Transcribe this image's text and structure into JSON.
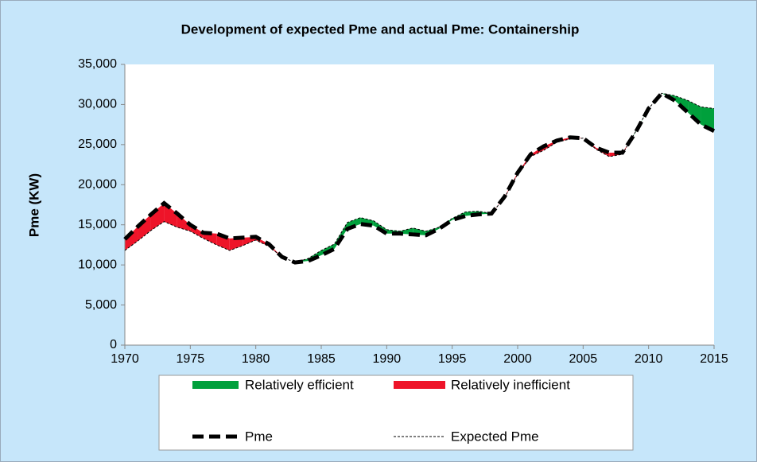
{
  "chart_data": {
    "type": "line",
    "title": "Development of expected Pme and actual Pme: Containership",
    "y_label": "Pme (KW)",
    "x": [
      1970,
      1971,
      1972,
      1973,
      1974,
      1975,
      1976,
      1977,
      1978,
      1979,
      1980,
      1981,
      1982,
      1983,
      1984,
      1985,
      1986,
      1987,
      1988,
      1989,
      1990,
      1991,
      1992,
      1993,
      1994,
      1995,
      1996,
      1997,
      1998,
      1999,
      2000,
      2001,
      2002,
      2003,
      2004,
      2005,
      2006,
      2007,
      2008,
      2009,
      2010,
      2011,
      2012,
      2013,
      2014,
      2015
    ],
    "series": [
      {
        "name": "Pme",
        "color": "#000000",
        "values": [
          13200,
          14800,
          16300,
          17700,
          16400,
          15000,
          14000,
          13900,
          13300,
          13400,
          13500,
          12600,
          11000,
          10300,
          10500,
          11200,
          12000,
          14500,
          15100,
          14900,
          13900,
          13900,
          13800,
          13700,
          14500,
          15600,
          16100,
          16300,
          16400,
          18500,
          21500,
          23800,
          24800,
          25500,
          25900,
          25800,
          24600,
          24000,
          24000,
          26500,
          29500,
          31400,
          30500,
          29000,
          27500,
          26700
        ]
      },
      {
        "name": "Expected Pme",
        "color": "#000000",
        "values": [
          11800,
          13000,
          14300,
          15400,
          14700,
          14200,
          13300,
          12500,
          11800,
          12400,
          13100,
          12300,
          11000,
          10300,
          10800,
          11800,
          12600,
          15300,
          15900,
          15500,
          14400,
          14200,
          14600,
          14200,
          14700,
          15800,
          16600,
          16700,
          16400,
          18400,
          21300,
          23500,
          24300,
          25300,
          25700,
          25800,
          24400,
          23500,
          23800,
          26600,
          29500,
          31400,
          31100,
          30500,
          29700,
          29500
        ]
      }
    ],
    "bands": [
      {
        "name": "Relatively efficient",
        "color": "#00a03c"
      },
      {
        "name": "Relatively inefficient",
        "color": "#ee1429"
      }
    ],
    "xlim": [
      1970,
      2015
    ],
    "xticks": [
      1970,
      1975,
      1980,
      1985,
      1990,
      1995,
      2000,
      2005,
      2010,
      2015
    ],
    "ylim": [
      0,
      35000
    ],
    "yticks": [
      0,
      {
        "value": 5000,
        "label": "5,000"
      },
      {
        "value": 10000,
        "label": "10,000"
      },
      {
        "value": 15000,
        "label": "15,000"
      },
      {
        "value": 20000,
        "label": "20,000"
      },
      {
        "value": 25000,
        "label": "25,000"
      },
      {
        "value": 30000,
        "label": "30,000"
      },
      {
        "value": 35000,
        "label": "35,000"
      }
    ],
    "background": "#c6e6fa"
  }
}
